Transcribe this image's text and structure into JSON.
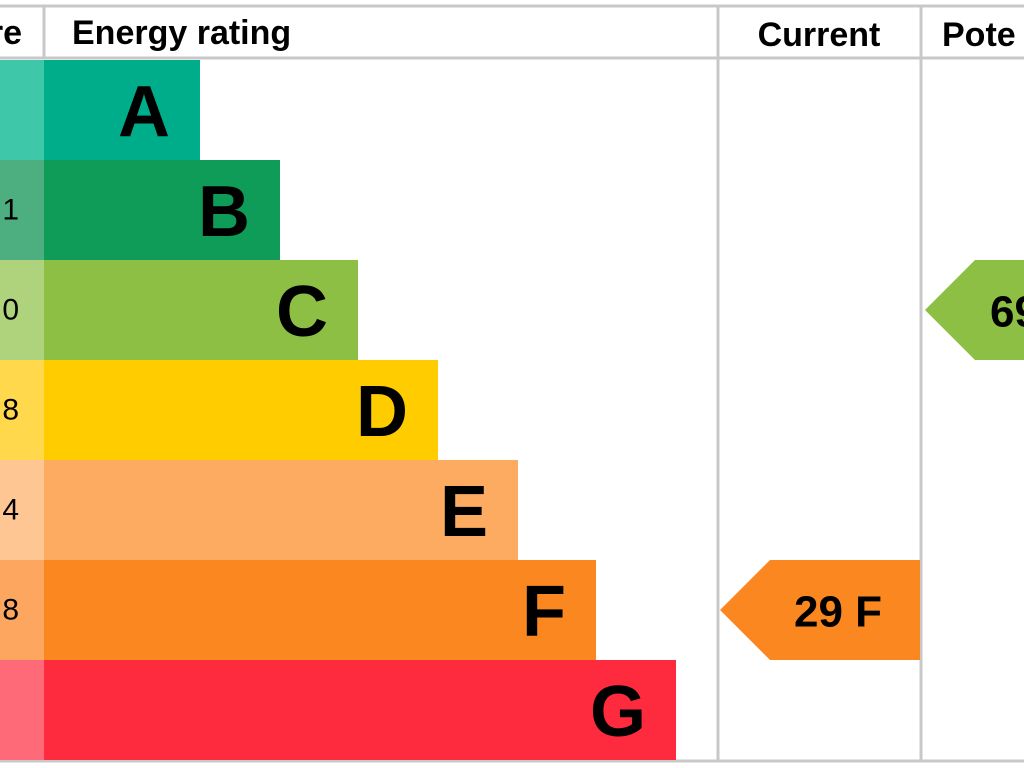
{
  "header": {
    "score": "re",
    "rating": "Energy rating",
    "current": "Current",
    "potential": "Pote"
  },
  "bands": [
    {
      "letter": "A",
      "color": "#00ad8a",
      "score_color": "#3ec8a9"
    },
    {
      "letter": "B",
      "color": "#0f9b58",
      "score_color": "#4dae80",
      "score": "1"
    },
    {
      "letter": "C",
      "color": "#8cbf44",
      "score_color": "#afd27c",
      "score": "0"
    },
    {
      "letter": "D",
      "color": "#ffcc00",
      "score_color": "#ffd84c",
      "score": "8"
    },
    {
      "letter": "E",
      "color": "#fdab61",
      "score_color": "#fec693",
      "score": "4"
    },
    {
      "letter": "F",
      "color": "#fb8721",
      "score_color": "#fca660",
      "score": "8"
    },
    {
      "letter": "G",
      "color": "#fe2a3d",
      "score_color": "#ff6a78"
    }
  ],
  "current": {
    "label": "29 F",
    "color": "#fb8721"
  },
  "potential": {
    "label": "69",
    "color": "#8cbf44"
  }
}
